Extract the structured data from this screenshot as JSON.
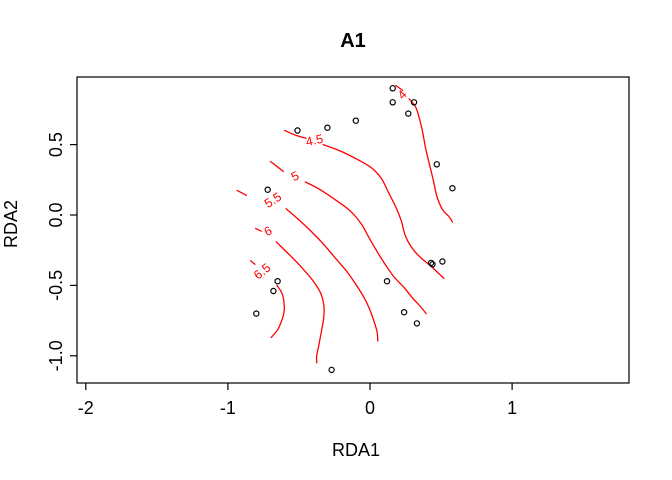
{
  "title": "A1",
  "colors": {
    "contour": "#ff0000",
    "points": "#000000",
    "axis": "#000000",
    "background": "#ffffff"
  },
  "chart_data": {
    "type": "scatter",
    "subtype": "ordination-with-contour-surface",
    "title": "A1",
    "xlabel": "RDA1",
    "ylabel": "RDA2",
    "xlim": [
      -2.062,
      1.823
    ],
    "ylim": [
      -1.193,
      0.98
    ],
    "grid": false,
    "legend": "none",
    "x_ticks": {
      "values": [
        -2,
        -1,
        0,
        1
      ],
      "labels": [
        "-2",
        "-1",
        "0",
        "1"
      ]
    },
    "y_ticks": {
      "values": [
        0.5,
        0.0,
        -0.5,
        -1.0
      ],
      "labels": [
        "0.5",
        "0.0",
        "-0.5",
        "-1.0"
      ]
    },
    "points": [
      [
        0.16,
        0.9
      ],
      [
        0.16,
        0.8
      ],
      [
        0.31,
        0.8
      ],
      [
        0.27,
        0.72
      ],
      [
        -0.1,
        0.67
      ],
      [
        -0.51,
        0.6
      ],
      [
        -0.3,
        0.62
      ],
      [
        -0.72,
        0.18
      ],
      [
        0.47,
        0.36
      ],
      [
        0.58,
        0.19
      ],
      [
        -0.65,
        -0.47
      ],
      [
        -0.68,
        -0.54
      ],
      [
        -0.8,
        -0.7
      ],
      [
        0.43,
        -0.34
      ],
      [
        0.44,
        -0.35
      ],
      [
        0.51,
        -0.33
      ],
      [
        0.12,
        -0.47
      ],
      [
        0.24,
        -0.69
      ],
      [
        0.33,
        -0.77
      ],
      [
        -0.27,
        -1.1
      ]
    ],
    "contour_levels": [
      4,
      4.5,
      5,
      5.5,
      6,
      6.5
    ],
    "contours": [
      {
        "level": "4",
        "label": {
          "x": 0.23,
          "y": 0.85,
          "rot": -45
        },
        "segments": [
          [
            [
              0.18,
              0.92
            ],
            [
              0.23,
              0.885
            ]
          ],
          [
            [
              0.275,
              0.825
            ],
            [
              0.32,
              0.77
            ],
            [
              0.345,
              0.695
            ],
            [
              0.37,
              0.59
            ],
            [
              0.39,
              0.48
            ],
            [
              0.415,
              0.375
            ],
            [
              0.445,
              0.25
            ],
            [
              0.47,
              0.135
            ],
            [
              0.51,
              0.04
            ],
            [
              0.555,
              -0.01
            ],
            [
              0.58,
              -0.05
            ]
          ]
        ]
      },
      {
        "level": "4.5",
        "label": {
          "x": -0.39,
          "y": 0.525,
          "rot": -12
        },
        "segments": [
          [
            [
              -0.6,
              0.6
            ],
            [
              -0.52,
              0.565
            ],
            [
              -0.45,
              0.545
            ]
          ],
          [
            [
              -0.33,
              0.5
            ],
            [
              -0.21,
              0.455
            ],
            [
              -0.08,
              0.39
            ],
            [
              0.01,
              0.335
            ],
            [
              0.08,
              0.26
            ],
            [
              0.13,
              0.16
            ],
            [
              0.18,
              0.06
            ],
            [
              0.22,
              -0.04
            ],
            [
              0.25,
              -0.15
            ],
            [
              0.3,
              -0.24
            ],
            [
              0.36,
              -0.305
            ],
            [
              0.43,
              -0.365
            ],
            [
              0.52,
              -0.45
            ]
          ]
        ]
      },
      {
        "level": "5",
        "label": {
          "x": -0.525,
          "y": 0.27,
          "rot": -26
        },
        "segments": [
          [
            [
              -0.7,
              0.38
            ],
            [
              -0.61,
              0.31
            ]
          ],
          [
            [
              -0.455,
              0.235
            ],
            [
              -0.35,
              0.18
            ],
            [
              -0.24,
              0.105
            ],
            [
              -0.14,
              0.03
            ],
            [
              -0.06,
              -0.065
            ],
            [
              -0.005,
              -0.165
            ],
            [
              0.05,
              -0.26
            ],
            [
              0.11,
              -0.355
            ],
            [
              0.17,
              -0.44
            ],
            [
              0.235,
              -0.51
            ],
            [
              0.3,
              -0.59
            ],
            [
              0.355,
              -0.65
            ],
            [
              0.395,
              -0.7
            ]
          ]
        ]
      },
      {
        "level": "5.5",
        "label": {
          "x": -0.68,
          "y": 0.1,
          "rot": -33
        },
        "segments": [
          [
            [
              -0.935,
              0.175
            ],
            [
              -0.87,
              0.14
            ]
          ],
          [
            [
              -0.59,
              0.045
            ],
            [
              -0.5,
              -0.035
            ],
            [
              -0.41,
              -0.12
            ],
            [
              -0.32,
              -0.215
            ],
            [
              -0.24,
              -0.31
            ],
            [
              -0.16,
              -0.405
            ],
            [
              -0.095,
              -0.5
            ],
            [
              -0.04,
              -0.59
            ],
            [
              0.0,
              -0.675
            ],
            [
              0.03,
              -0.76
            ],
            [
              0.05,
              -0.83
            ],
            [
              0.055,
              -0.895
            ]
          ]
        ]
      },
      {
        "level": "6",
        "label": {
          "x": -0.715,
          "y": -0.12,
          "rot": -26
        },
        "segments": [
          [
            [
              -0.805,
              -0.095
            ],
            [
              -0.765,
              -0.115
            ]
          ],
          [
            [
              -0.66,
              -0.19
            ],
            [
              -0.58,
              -0.27
            ],
            [
              -0.51,
              -0.34
            ],
            [
              -0.44,
              -0.42
            ],
            [
              -0.385,
              -0.49
            ],
            [
              -0.345,
              -0.56
            ],
            [
              -0.325,
              -0.64
            ],
            [
              -0.325,
              -0.725
            ],
            [
              -0.34,
              -0.815
            ],
            [
              -0.36,
              -0.925
            ],
            [
              -0.375,
              -1.0
            ],
            [
              -0.375,
              -1.05
            ]
          ]
        ]
      },
      {
        "level": "6.5",
        "label": {
          "x": -0.755,
          "y": -0.405,
          "rot": -38
        },
        "segments": [
          [
            [
              -0.84,
              -0.325
            ],
            [
              -0.81,
              -0.35
            ]
          ],
          [
            [
              -0.655,
              -0.5
            ],
            [
              -0.62,
              -0.555
            ],
            [
              -0.605,
              -0.62
            ],
            [
              -0.605,
              -0.69
            ],
            [
              -0.625,
              -0.76
            ],
            [
              -0.65,
              -0.815
            ],
            [
              -0.695,
              -0.87
            ]
          ]
        ]
      }
    ]
  }
}
